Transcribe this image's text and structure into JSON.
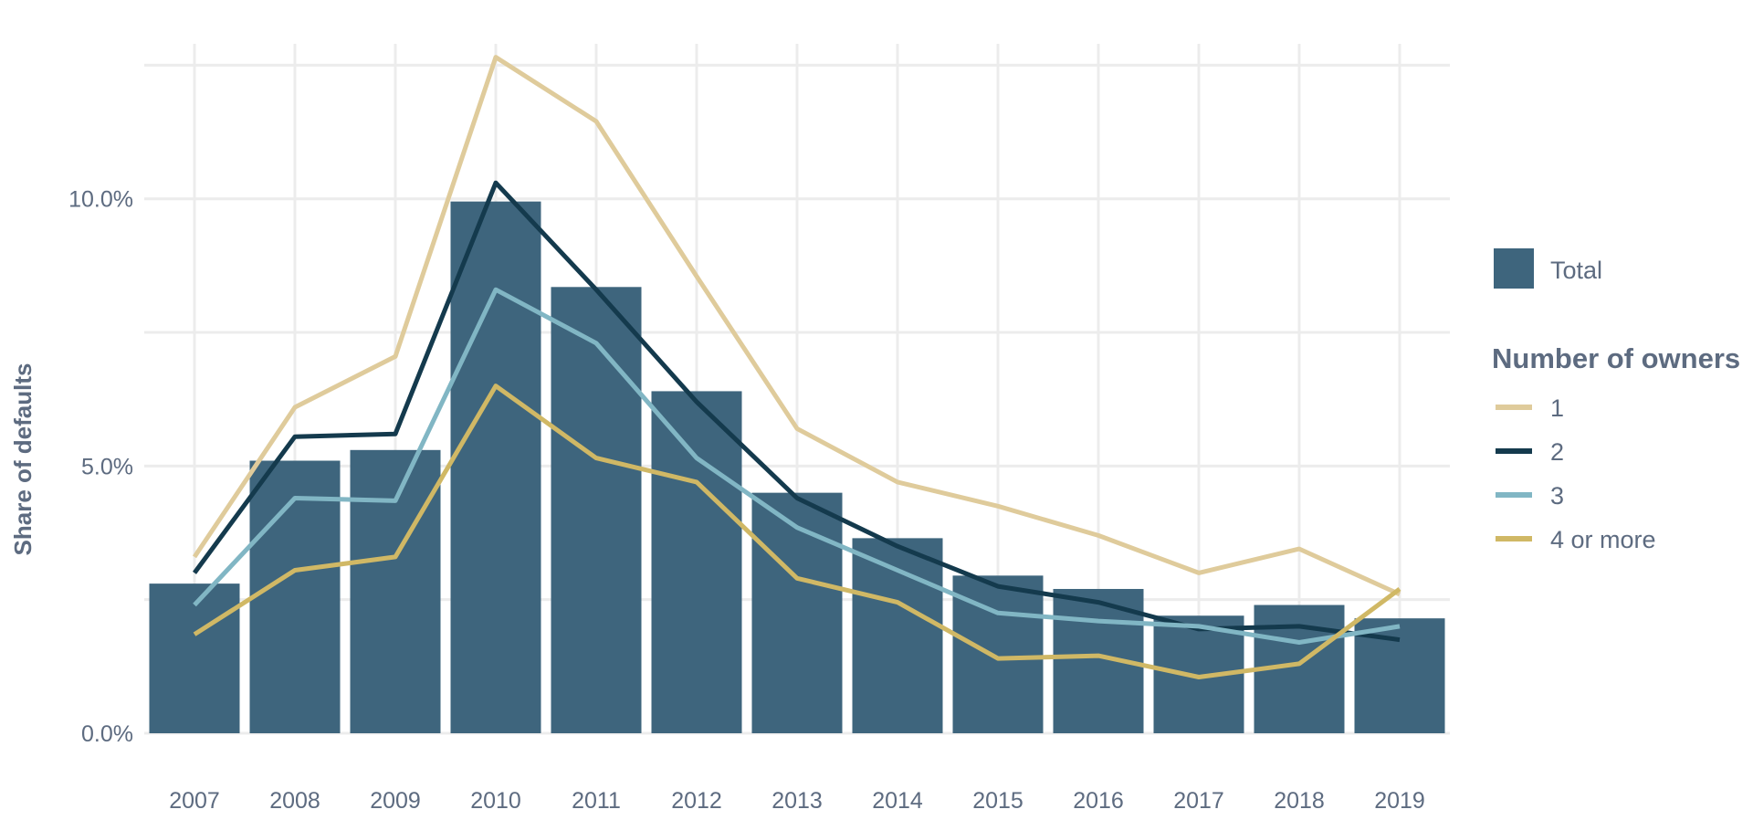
{
  "chart_data": {
    "type": "bar",
    "title": "",
    "xlabel": "",
    "ylabel": "Share of defaults",
    "ylim": [
      0,
      12.9
    ],
    "y_ticks": [
      0,
      5,
      10
    ],
    "y_tick_labels": [
      "0.0%",
      "5.0%",
      "10.0%"
    ],
    "grid": true,
    "legend_position": "right",
    "categories": [
      "2007",
      "2008",
      "2009",
      "2010",
      "2011",
      "2012",
      "2013",
      "2014",
      "2015",
      "2016",
      "2017",
      "2018",
      "2019"
    ],
    "bars": {
      "name": "Total",
      "color": "#3e657d",
      "values": [
        2.8,
        5.1,
        5.3,
        9.95,
        8.35,
        6.4,
        4.5,
        3.65,
        2.95,
        2.7,
        2.2,
        2.4,
        2.15
      ]
    },
    "legend_title": "Number of owners",
    "series": [
      {
        "name": "1",
        "color": "#dfcb9b",
        "values": [
          3.3,
          6.1,
          7.05,
          12.65,
          11.45,
          8.55,
          5.7,
          4.7,
          4.25,
          3.7,
          3.0,
          3.45,
          2.6
        ]
      },
      {
        "name": "2",
        "color": "#143a4d",
        "values": [
          3.0,
          5.55,
          5.6,
          10.3,
          8.3,
          6.2,
          4.4,
          3.5,
          2.75,
          2.45,
          1.95,
          2.0,
          1.75
        ]
      },
      {
        "name": "3",
        "color": "#81b6c4",
        "values": [
          2.4,
          4.4,
          4.35,
          8.3,
          7.3,
          5.15,
          3.85,
          3.05,
          2.25,
          2.1,
          2.0,
          1.7,
          2.0
        ]
      },
      {
        "name": "4 or more",
        "color": "#d0b865",
        "values": [
          1.85,
          3.05,
          3.3,
          6.5,
          5.15,
          4.7,
          2.9,
          2.45,
          1.4,
          1.45,
          1.05,
          1.3,
          2.7
        ]
      }
    ]
  }
}
